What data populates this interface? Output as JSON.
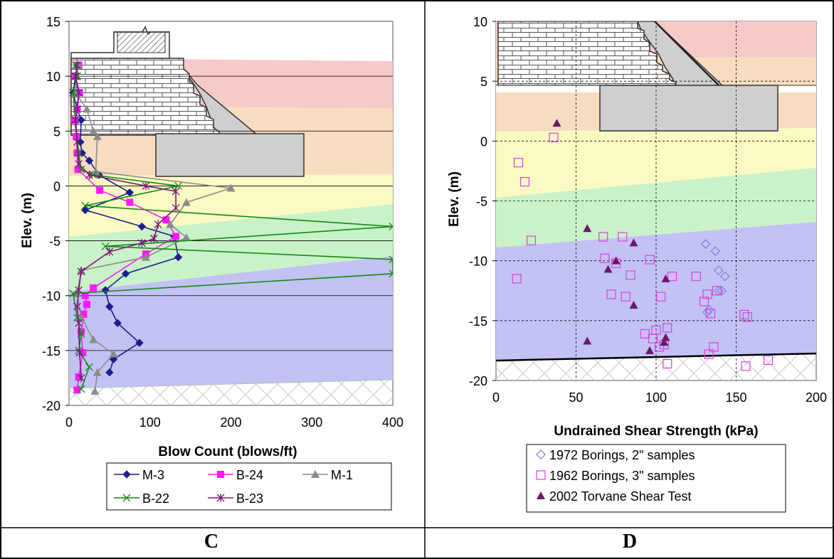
{
  "colors": {
    "pink_band": "#f7c9c9",
    "orange_band": "#f7dcc0",
    "yellow_band": "#fafac2",
    "green_band": "#caf2c9",
    "blue_band": "#c2c2f4",
    "wall_gray": "#cfcfcf",
    "navy": "#1c1e8c",
    "magenta": "#ff19ff",
    "gray": "#8c8c8c",
    "green": "#138a14",
    "purple": "#7a1878",
    "dark_purple": "#6b176b",
    "diamond_blue": "#7f7fd8",
    "open_square": "#e03ce0"
  },
  "panel_labels": {
    "left": "C",
    "right": "D"
  },
  "chart_data": [
    {
      "type": "line",
      "xlabel": "Blow Count (blows/ft)",
      "ylabel": "Elev. (m)",
      "xlim": [
        0,
        400
      ],
      "ylim": [
        -20,
        15
      ],
      "xticks": [
        0,
        100,
        200,
        300,
        400
      ],
      "yticks": [
        15,
        10,
        5,
        0,
        -5,
        -10,
        -15,
        -20
      ],
      "grid": "horizontal",
      "legend_position": "bottom",
      "series": [
        {
          "name": "M-3",
          "marker": "diamond",
          "color": "#1c1e8c",
          "points": [
            [
              11,
              11
            ],
            [
              8,
              10
            ],
            [
              5,
              8.5
            ],
            [
              10,
              7
            ],
            [
              15,
              6
            ],
            [
              14,
              4
            ],
            [
              16,
              3
            ],
            [
              25,
              2.3
            ],
            [
              37,
              1
            ],
            [
              75,
              -0.6
            ],
            [
              20,
              -2.2
            ],
            [
              90,
              -3.7
            ],
            [
              130,
              -4.6
            ],
            [
              135,
              -6.5
            ],
            [
              70,
              -8
            ],
            [
              45,
              -9.5
            ],
            [
              50,
              -11
            ],
            [
              60,
              -12.5
            ],
            [
              87,
              -14.3
            ],
            [
              55,
              -15.8
            ],
            [
              50,
              -17
            ]
          ]
        },
        {
          "name": "B-24",
          "marker": "square",
          "color": "#ff19ff",
          "points": [
            [
              12,
              11
            ],
            [
              8,
              10
            ],
            [
              13,
              8.5
            ],
            [
              10,
              7
            ],
            [
              7,
              6
            ],
            [
              9,
              4.5
            ],
            [
              10,
              3
            ],
            [
              11,
              1.5
            ],
            [
              38,
              -0.4
            ],
            [
              75,
              -1.5
            ],
            [
              120,
              -3.1
            ],
            [
              132,
              -4.6
            ],
            [
              95,
              -6.2
            ],
            [
              30,
              -9.3
            ],
            [
              20,
              -10
            ],
            [
              22,
              -10.8
            ],
            [
              18,
              -11.7
            ],
            [
              15,
              -13.3
            ],
            [
              17,
              -15.2
            ],
            [
              12,
              -17.4
            ],
            [
              10,
              -18.6
            ]
          ]
        },
        {
          "name": "M-1",
          "marker": "triangle",
          "color": "#8c8c8c",
          "points": [
            [
              12,
              11
            ],
            [
              10,
              10
            ],
            [
              8,
              8.5
            ],
            [
              22,
              7
            ],
            [
              30,
              5
            ],
            [
              35,
              4.5
            ],
            [
              33,
              1.3
            ],
            [
              200,
              -0.2
            ],
            [
              145,
              -1.5
            ],
            [
              125,
              -3.5
            ],
            [
              145,
              -4.7
            ],
            [
              95,
              -6.5
            ],
            [
              15,
              -7.7
            ],
            [
              10,
              -9.8
            ],
            [
              15,
              -12
            ],
            [
              30,
              -14
            ],
            [
              55,
              -15.3
            ],
            [
              35,
              -17
            ],
            [
              32,
              -18.7
            ]
          ]
        },
        {
          "name": "B-22",
          "marker": "x",
          "color": "#138a14",
          "points": [
            [
              8,
              11
            ],
            [
              10,
              10
            ],
            [
              5,
              8.5
            ],
            [
              8,
              6
            ],
            [
              12,
              3
            ],
            [
              15,
              1.5
            ],
            [
              30,
              1
            ],
            [
              135,
              0
            ],
            [
              20,
              -1.8
            ],
            [
              400,
              -3.7
            ],
            [
              45,
              -5.5
            ],
            [
              400,
              -6.7
            ],
            [
              400,
              -8
            ],
            [
              5,
              -9.8
            ],
            [
              10,
              -12
            ],
            [
              15,
              -13.5
            ],
            [
              12,
              -15
            ],
            [
              25,
              -16.5
            ],
            [
              15,
              -18.5
            ]
          ]
        },
        {
          "name": "B-23",
          "marker": "star",
          "color": "#7a1878",
          "points": [
            [
              10,
              11
            ],
            [
              8,
              10
            ],
            [
              12,
              8.5
            ],
            [
              10,
              7
            ],
            [
              8,
              6
            ],
            [
              10,
              4
            ],
            [
              12,
              2
            ],
            [
              25,
              1
            ],
            [
              95,
              0
            ],
            [
              132,
              -0.5
            ],
            [
              132,
              -2
            ],
            [
              110,
              -3.5
            ],
            [
              105,
              -4.8
            ],
            [
              90,
              -5.2
            ],
            [
              50,
              -6
            ],
            [
              15,
              -7.8
            ],
            [
              12,
              -9.5
            ],
            [
              10,
              -11
            ],
            [
              12,
              -12.5
            ],
            [
              13,
              -15.2
            ],
            [
              15,
              -17.5
            ]
          ]
        }
      ]
    },
    {
      "type": "scatter",
      "xlabel": "Undrained Shear Strength (kPa)",
      "ylabel": "Elev. (m)",
      "xlim": [
        0,
        200
      ],
      "ylim": [
        -20,
        10
      ],
      "xticks": [
        0,
        50,
        100,
        150,
        200
      ],
      "yticks": [
        10,
        5,
        0,
        -5,
        -10,
        -15,
        -20
      ],
      "grid": "dashed both",
      "legend_position": "bottom",
      "series": [
        {
          "name": "1972 Borings, 2\" samples",
          "marker": "open-diamond",
          "color": "#7f7fd8",
          "points": [
            [
              131,
              -8.6
            ],
            [
              137,
              -9.2
            ],
            [
              139,
              -10.8
            ],
            [
              143,
              -11.3
            ],
            [
              139,
              -12.5
            ],
            [
              141,
              -12.5
            ],
            [
              133,
              -14.1
            ],
            [
              132,
              -14.3
            ]
          ]
        },
        {
          "name": "1962 Borings, 3\" samples",
          "marker": "open-square",
          "color": "#e03ce0",
          "points": [
            [
              36,
              0.3
            ],
            [
              14,
              -1.8
            ],
            [
              18,
              -3.4
            ],
            [
              22,
              -8.3
            ],
            [
              67,
              -8
            ],
            [
              79,
              -8
            ],
            [
              68,
              -9.8
            ],
            [
              75,
              -10.2
            ],
            [
              96,
              -9.9
            ],
            [
              13,
              -11.5
            ],
            [
              84,
              -11.2
            ],
            [
              110,
              -11.3
            ],
            [
              125,
              -11.3
            ],
            [
              72,
              -12.8
            ],
            [
              81,
              -13
            ],
            [
              103,
              -13
            ],
            [
              132,
              -12.8
            ],
            [
              130,
              -13.4
            ],
            [
              138,
              -12.5
            ],
            [
              134,
              -14.4
            ],
            [
              100,
              -15.8
            ],
            [
              107,
              -15.6
            ],
            [
              93,
              -16.1
            ],
            [
              155,
              -14.5
            ],
            [
              157,
              -14.7
            ],
            [
              98,
              -16.5
            ],
            [
              102,
              -17.2
            ],
            [
              105,
              -17
            ],
            [
              136,
              -17.2
            ],
            [
              133,
              -17.8
            ],
            [
              107,
              -18.6
            ],
            [
              156,
              -18.8
            ],
            [
              170,
              -18.3
            ]
          ]
        },
        {
          "name": "2002 Torvane Shear Test",
          "marker": "filled-triangle",
          "color": "#6b176b",
          "points": [
            [
              38,
              1.5
            ],
            [
              57,
              -7.3
            ],
            [
              75,
              -10
            ],
            [
              70,
              -10.7
            ],
            [
              86,
              -8.5
            ],
            [
              106,
              -11.5
            ],
            [
              86,
              -13.7
            ],
            [
              57,
              -16.7
            ],
            [
              106,
              -16.4
            ],
            [
              105,
              -16.8
            ],
            [
              96,
              -17.5
            ]
          ]
        }
      ]
    }
  ]
}
